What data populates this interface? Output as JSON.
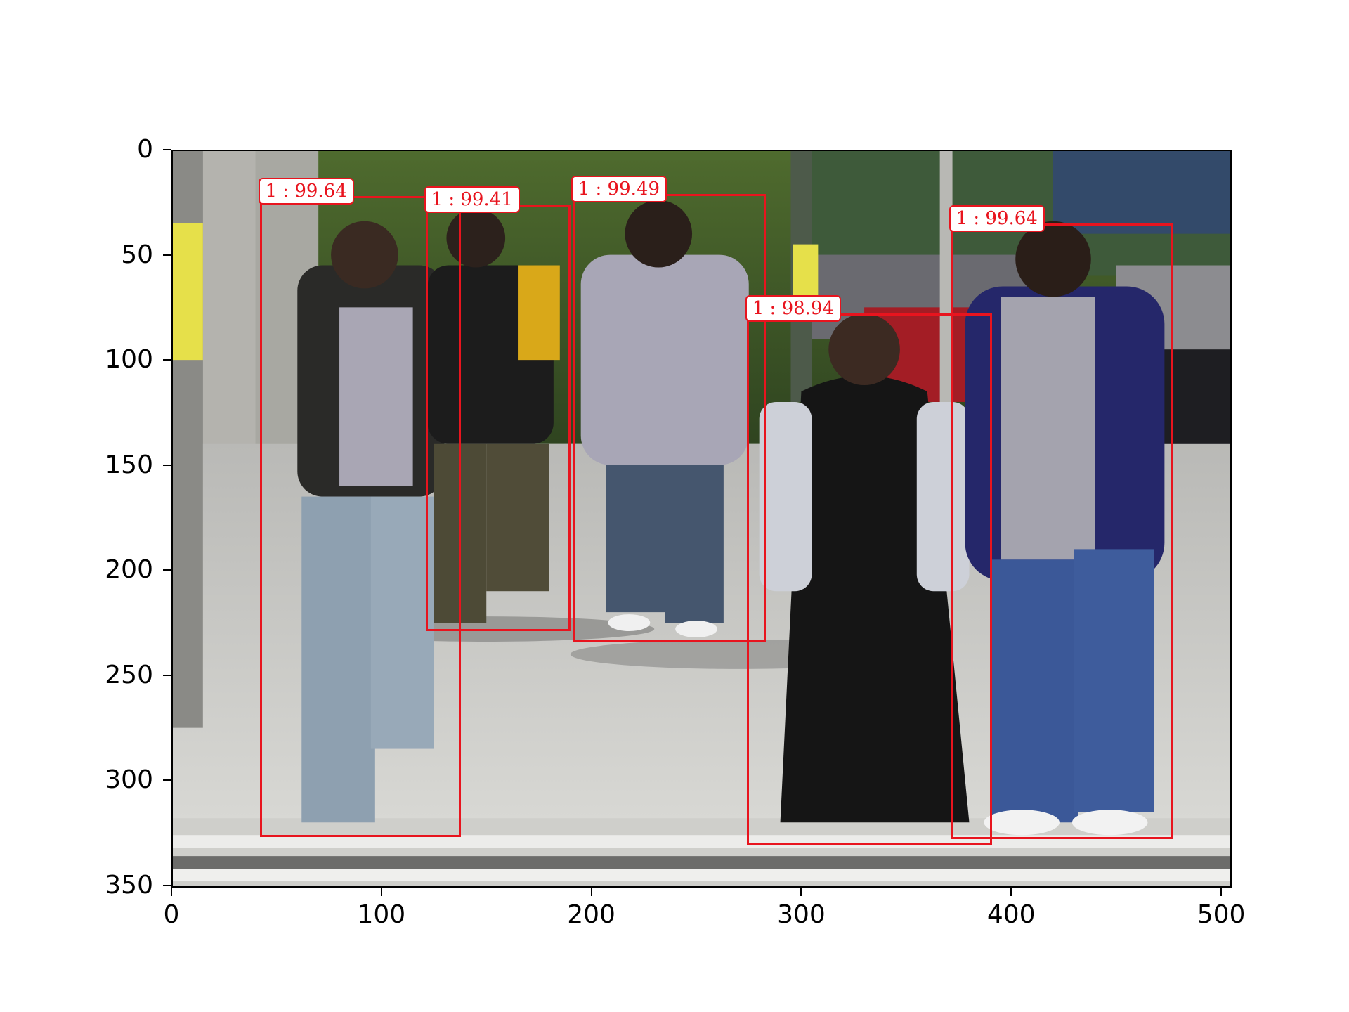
{
  "image": {
    "width": 505,
    "height": 351,
    "scene": "sidewalk street scene"
  },
  "axes": {
    "x_ticks": [
      "0",
      "100",
      "200",
      "300",
      "400",
      "500"
    ],
    "y_ticks": [
      "0",
      "50",
      "100",
      "150",
      "200",
      "250",
      "300",
      "350"
    ],
    "x_tick_values": [
      0,
      100,
      200,
      300,
      400,
      500
    ],
    "y_tick_values": [
      0,
      50,
      100,
      150,
      200,
      250,
      300,
      350
    ],
    "xlim": [
      0,
      505
    ],
    "ylim": [
      351,
      0
    ]
  },
  "detections": [
    {
      "label": "1 : 99.64",
      "x1": 42,
      "y1": 22,
      "x2": 138,
      "y2": 327
    },
    {
      "label": "1 : 99.41",
      "x1": 121,
      "y1": 26,
      "x2": 190,
      "y2": 229
    },
    {
      "label": "1 : 99.49",
      "x1": 191,
      "y1": 21,
      "x2": 283,
      "y2": 234
    },
    {
      "label": "1 : 98.94",
      "x1": 274,
      "y1": 78,
      "x2": 391,
      "y2": 331
    },
    {
      "label": "1 : 99.64",
      "x1": 371,
      "y1": 35,
      "x2": 477,
      "y2": 328
    }
  ],
  "colors": {
    "box": "#e8141e",
    "label_text": "#e8141e",
    "label_bg": "#ffffff"
  }
}
